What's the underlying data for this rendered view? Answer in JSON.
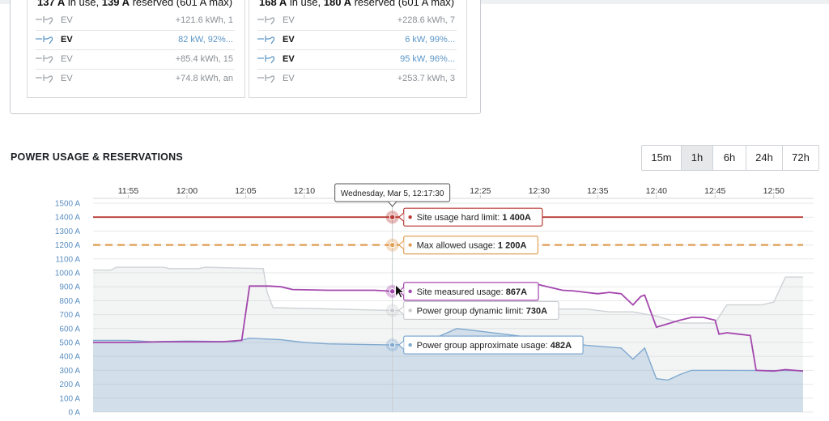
{
  "groups": [
    {
      "head_in_use": "137 A",
      "head_mid": " in use, ",
      "head_reserved": "139 A",
      "head_tail": " reserved (601 A max)",
      "rows": [
        {
          "name": "EV",
          "value": "+121.6 kWh, 1",
          "active": false
        },
        {
          "name": "EV",
          "value": "82 kW, 92%...",
          "active": true
        },
        {
          "name": "EV",
          "value": "+85.4 kWh, 15",
          "active": false
        },
        {
          "name": "EV",
          "value": "+74.8 kWh, an",
          "active": false
        }
      ]
    },
    {
      "head_in_use": "168 A",
      "head_mid": " in use, ",
      "head_reserved": "180 A",
      "head_tail": " reserved (601 A max)",
      "rows": [
        {
          "name": "EV",
          "value": "+228.6 kWh, 7",
          "active": false
        },
        {
          "name": "EV",
          "value": "6 kW, 99%...",
          "active": true
        },
        {
          "name": "EV",
          "value": "95 kW, 96%...",
          "active": true
        },
        {
          "name": "EV",
          "value": "+253.7 kWh, 3",
          "active": false
        }
      ]
    }
  ],
  "section_title": "POWER USAGE & RESERVATIONS",
  "ranges": [
    {
      "label": "15m",
      "active": false
    },
    {
      "label": "1h",
      "active": true
    },
    {
      "label": "6h",
      "active": false
    },
    {
      "label": "24h",
      "active": false
    },
    {
      "label": "72h",
      "active": false
    }
  ],
  "chart_data": {
    "type": "area",
    "title": "",
    "xlabel": "",
    "ylabel": "",
    "ylim": [
      0,
      1500
    ],
    "x_start": "11:52",
    "x_end": "12:52:30",
    "x_ticks": [
      "11:55",
      "12:00",
      "12:05",
      "12:10",
      "12:25",
      "12:30",
      "12:35",
      "12:40",
      "12:45",
      "12:50"
    ],
    "y_ticks": [
      "0 A",
      "100 A",
      "200 A",
      "300 A",
      "400 A",
      "500 A",
      "600 A",
      "700 A",
      "800 A",
      "900 A",
      "1000 A",
      "1100 A",
      "1200 A",
      "1300 A",
      "1400 A",
      "1500 A"
    ],
    "grid": true,
    "series": [
      {
        "name": "Site usage hard limit",
        "color": "#b83a35",
        "style": "line",
        "points": [
          [
            "11:52",
            1400
          ],
          [
            "12:52:30",
            1400
          ]
        ]
      },
      {
        "name": "Max allowed usage",
        "color": "#e0a058",
        "style": "dashed",
        "points": [
          [
            "11:52",
            1200
          ],
          [
            "12:52:30",
            1200
          ]
        ]
      },
      {
        "name": "Power group dynamic limit",
        "color": "#cfd2d6",
        "style": "area",
        "points": [
          [
            "11:52",
            1020
          ],
          [
            "11:53:30",
            1020
          ],
          [
            "11:54",
            1040
          ],
          [
            "11:58",
            1040
          ],
          [
            "11:58:30",
            1030
          ],
          [
            "12:01",
            1030
          ],
          [
            "12:01:30",
            1040
          ],
          [
            "12:06:30",
            1030
          ],
          [
            "12:06:50",
            860
          ],
          [
            "12:07:20",
            750
          ],
          [
            "12:17:30",
            730
          ],
          [
            "12:20",
            730
          ],
          [
            "12:23",
            740
          ],
          [
            "12:32",
            740
          ],
          [
            "12:34",
            740
          ],
          [
            "12:36",
            720
          ],
          [
            "12:38",
            720
          ],
          [
            "12:40",
            690
          ],
          [
            "12:42",
            640
          ],
          [
            "12:45",
            640
          ],
          [
            "12:46",
            770
          ],
          [
            "12:49",
            770
          ],
          [
            "12:50",
            790
          ],
          [
            "12:51",
            970
          ],
          [
            "12:52:30",
            970
          ]
        ]
      },
      {
        "name": "Power group approximate usage",
        "color": "#7fa9d0",
        "style": "area",
        "points": [
          [
            "11:52",
            515
          ],
          [
            "11:55",
            515
          ],
          [
            "11:57",
            505
          ],
          [
            "12:00",
            510
          ],
          [
            "12:04",
            505
          ],
          [
            "12:05:20",
            530
          ],
          [
            "12:08",
            520
          ],
          [
            "12:10",
            500
          ],
          [
            "12:12",
            490
          ],
          [
            "12:17:30",
            482
          ],
          [
            "12:20",
            490
          ],
          [
            "12:23",
            600
          ],
          [
            "12:25",
            580
          ],
          [
            "12:27",
            560
          ],
          [
            "12:31",
            520
          ],
          [
            "12:34",
            480
          ],
          [
            "12:37",
            460
          ],
          [
            "12:38",
            380
          ],
          [
            "12:39",
            460
          ],
          [
            "12:40",
            240
          ],
          [
            "12:41",
            230
          ],
          [
            "12:42",
            270
          ],
          [
            "12:43",
            300
          ],
          [
            "12:46",
            300
          ],
          [
            "12:52:30",
            298
          ]
        ]
      },
      {
        "name": "Site measured usage",
        "color": "#a347ad",
        "style": "line",
        "points": [
          [
            "11:52",
            500
          ],
          [
            "11:55",
            500
          ],
          [
            "11:58",
            505
          ],
          [
            "12:00",
            505
          ],
          [
            "12:03",
            505
          ],
          [
            "12:04:40",
            515
          ],
          [
            "12:05:20",
            905
          ],
          [
            "12:07",
            905
          ],
          [
            "12:08",
            900
          ],
          [
            "12:09",
            880
          ],
          [
            "12:12",
            875
          ],
          [
            "12:16",
            875
          ],
          [
            "12:17:30",
            867
          ],
          [
            "12:25",
            900
          ],
          [
            "12:29",
            920
          ],
          [
            "12:30",
            915
          ],
          [
            "12:31",
            895
          ],
          [
            "12:32",
            875
          ],
          [
            "12:33",
            870
          ],
          [
            "12:34",
            860
          ],
          [
            "12:35",
            850
          ],
          [
            "12:36",
            860
          ],
          [
            "12:37",
            850
          ],
          [
            "12:38",
            770
          ],
          [
            "12:38:40",
            830
          ],
          [
            "12:39",
            840
          ],
          [
            "12:40",
            610
          ],
          [
            "12:42",
            660
          ],
          [
            "12:43",
            680
          ],
          [
            "12:44",
            680
          ],
          [
            "12:45",
            660
          ],
          [
            "12:45:20",
            560
          ],
          [
            "12:46",
            570
          ],
          [
            "12:47",
            560
          ],
          [
            "12:48",
            550
          ],
          [
            "12:48:30",
            300
          ],
          [
            "12:50",
            295
          ],
          [
            "12:51",
            305
          ],
          [
            "12:52:30",
            295
          ]
        ]
      }
    ],
    "tooltip": {
      "date": "Wednesday, Mar 5, 12:17:30",
      "time": "12:17:30",
      "items": [
        {
          "label": "Site usage hard limit: ",
          "value": "1 400A",
          "color": "#b83a35",
          "y": 1400
        },
        {
          "label": "Max allowed usage: ",
          "value": "1 200A",
          "color": "#e0a058",
          "y": 1200
        },
        {
          "label": "Site measured usage: ",
          "value": "867A",
          "color": "#a347ad",
          "y": 867
        },
        {
          "label": "Power group dynamic limit: ",
          "value": "730A",
          "color": "#c8cbcf",
          "y": 730
        },
        {
          "label": "Power group approximate usage: ",
          "value": "482A",
          "color": "#7fa9d0",
          "y": 482
        }
      ]
    }
  }
}
